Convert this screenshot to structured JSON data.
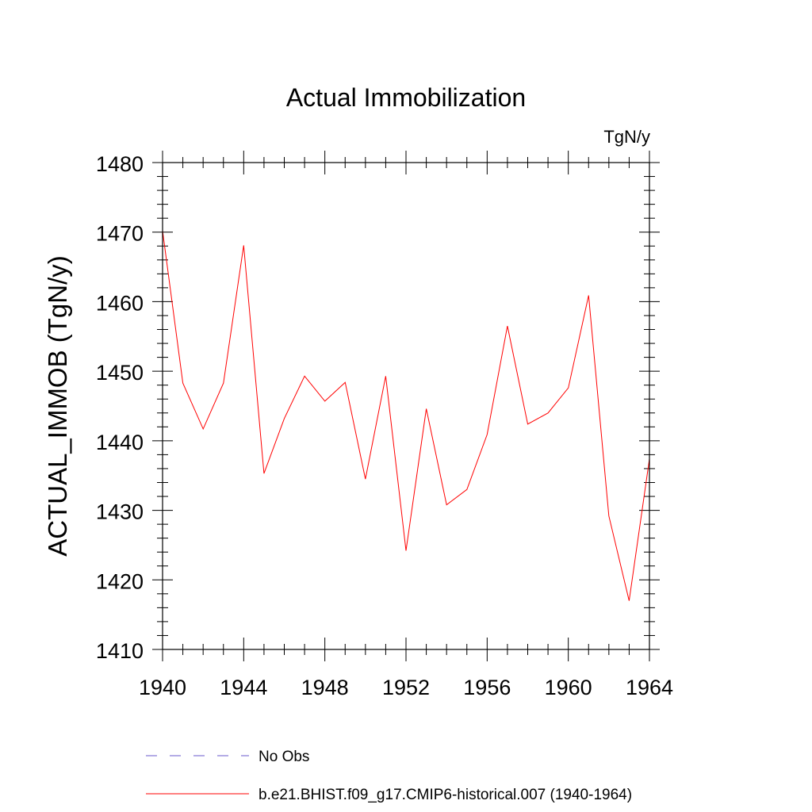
{
  "chart_data": {
    "type": "line",
    "title": "Actual Immobilization",
    "units": "TgN/y",
    "ylabel": "ACTUAL_IMMOB  (TgN/y)",
    "xlabel": "",
    "xlim": [
      1940,
      1964
    ],
    "ylim": [
      1410,
      1480
    ],
    "x_ticks": [
      1940,
      1944,
      1948,
      1952,
      1956,
      1960,
      1964
    ],
    "y_ticks": [
      1410,
      1420,
      1430,
      1440,
      1450,
      1460,
      1470,
      1480
    ],
    "grid": false,
    "series": [
      {
        "name": "No Obs",
        "color": "#6a5acd",
        "style": "dashed",
        "x": [],
        "values": []
      },
      {
        "name": "b.e21.BHIST.f09_g17.CMIP6-historical.007 (1940-1964)",
        "color": "#ff0000",
        "style": "solid",
        "x": [
          1940,
          1941,
          1942,
          1943,
          1944,
          1945,
          1946,
          1947,
          1948,
          1949,
          1950,
          1951,
          1952,
          1953,
          1954,
          1955,
          1956,
          1957,
          1958,
          1959,
          1960,
          1961,
          1962,
          1963,
          1964
        ],
        "values": [
          1470.2,
          1448.3,
          1441.7,
          1448.3,
          1468.1,
          1435.3,
          1443.2,
          1449.3,
          1445.7,
          1448.4,
          1434.5,
          1449.3,
          1424.2,
          1444.6,
          1430.8,
          1433.0,
          1440.9,
          1456.5,
          1442.4,
          1444.0,
          1447.6,
          1460.9,
          1429.2,
          1417.0,
          1437.4
        ]
      }
    ]
  }
}
